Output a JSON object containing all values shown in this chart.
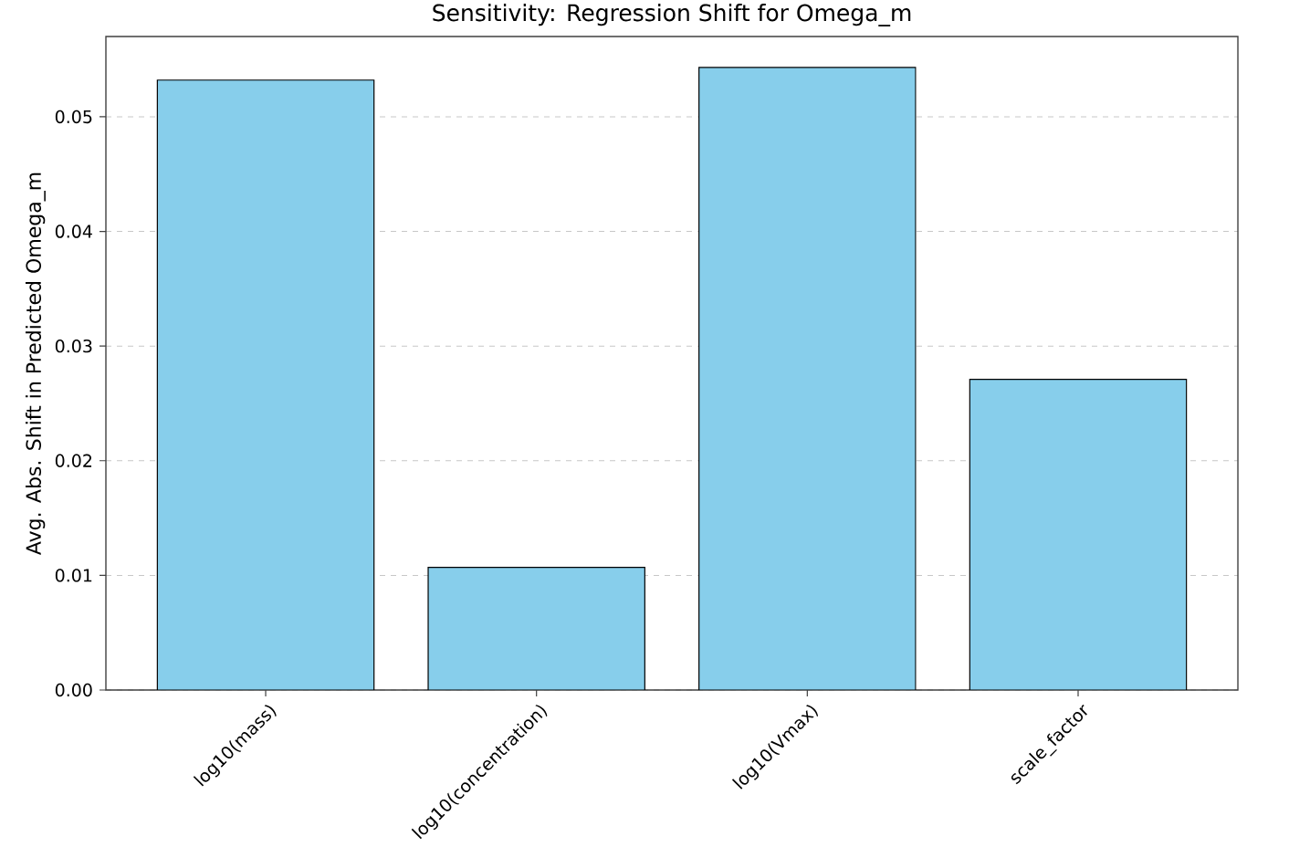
{
  "chart_data": {
    "type": "bar",
    "title": "Sensitivity: Regression Shift for Omega_m",
    "ylabel": "Avg. Abs. Shift in Predicted Omega_m",
    "categories": [
      "log10(mass)",
      "log10(concentration)",
      "log10(Vmax)",
      "scale_factor"
    ],
    "values": [
      0.0532,
      0.0107,
      0.0543,
      0.0271
    ],
    "color": "#87ceeb",
    "ylim": [
      0,
      0.057
    ],
    "yticks": [
      {
        "value": 0,
        "label": "0.00"
      },
      0.01,
      0.02,
      0.03,
      0.04,
      0.05
    ],
    "grid": "y"
  }
}
